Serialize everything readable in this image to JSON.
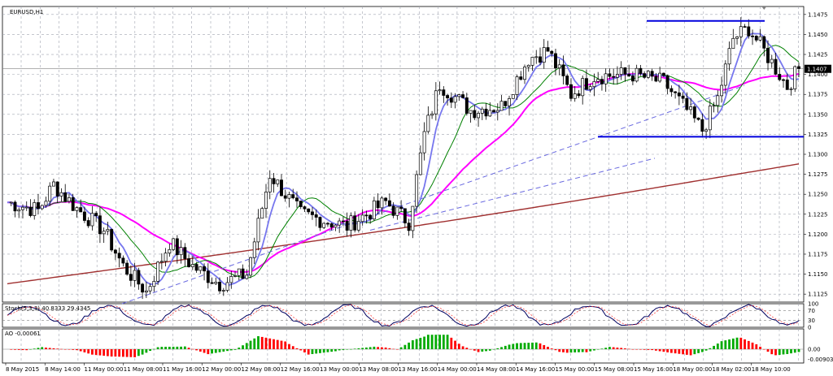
{
  "chart_data": {
    "type": "candlestick",
    "title": "EURUSD,H1",
    "price_axis": {
      "ticks": [
        "1.1475",
        "1.1450",
        "1.1425",
        "1.1400",
        "1.1375",
        "1.1350",
        "1.1325",
        "1.1300",
        "1.1275",
        "1.1250",
        "1.1225",
        "1.1200",
        "1.1175",
        "1.1150",
        "1.1125"
      ],
      "range": [
        1.1115,
        1.1485
      ],
      "current_price_label": "1.1407"
    },
    "time_axis": {
      "ticks": [
        "8 May 2015",
        "8 May 14:00",
        "11 May 00:00",
        "11 May 08:00",
        "11 May 16:00",
        "12 May 00:00",
        "12 May 08:00",
        "12 May 16:00",
        "13 May 00:00",
        "13 May 08:00",
        "13 May 16:00",
        "14 May 00:00",
        "14 May 08:00",
        "14 May 16:00",
        "15 May 00:00",
        "15 May 08:00",
        "15 May 16:00",
        "18 May 00:00",
        "18 May 02:00",
        "18 May 10:00"
      ]
    },
    "indicators": {
      "stochastic": {
        "label": "Stoch(5,3,3) 40.8333 29.4345",
        "levels": [
          "100",
          "70",
          "30",
          "0"
        ]
      },
      "ao": {
        "label": "AO -0.00061",
        "ticks": [
          "0.00",
          "-0.00903"
        ]
      }
    },
    "horizontal_lines": [
      1.1467,
      1.1322
    ],
    "colors": {
      "bull": "#00aa00",
      "bear": "#ff0000",
      "ma_slow": "#a03030",
      "ma_mid": "#ff00ff",
      "ma_green": "#008000",
      "ma_fast": "#7777ee",
      "hline": "#0000dd",
      "grid": "#a0a4b0"
    }
  }
}
